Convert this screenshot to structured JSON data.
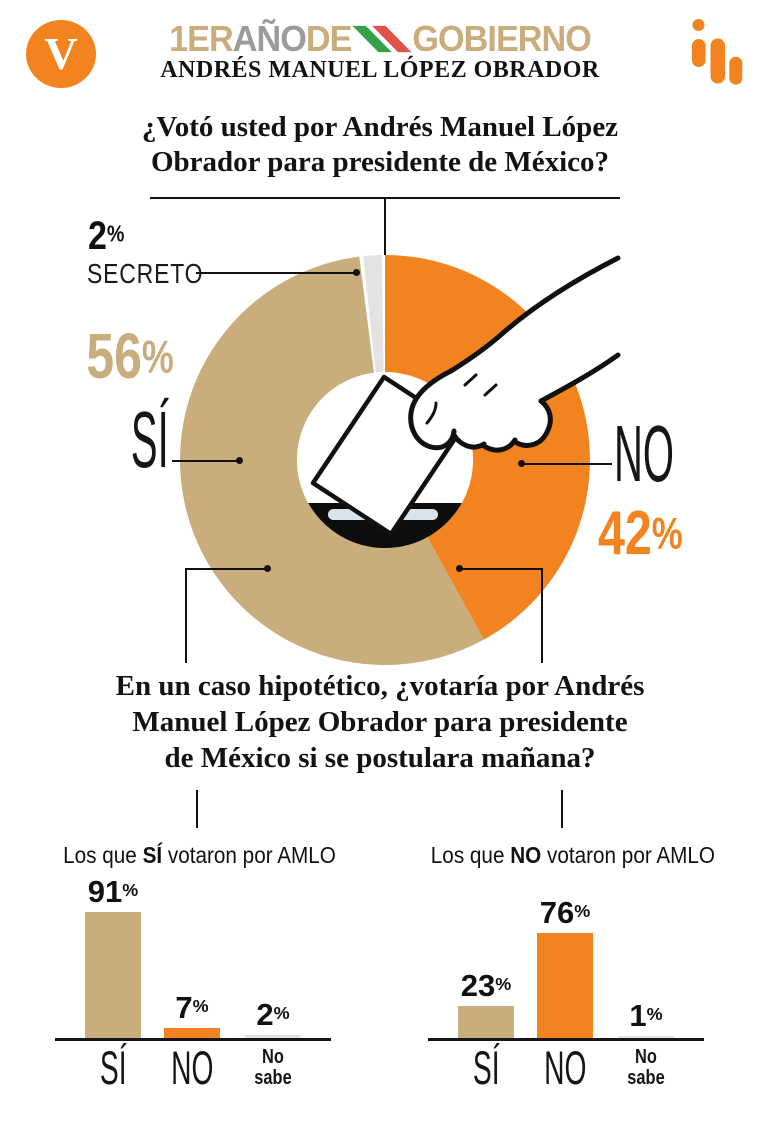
{
  "colors": {
    "tan": "#C9AD7C",
    "orange": "#F3831F",
    "graySeg": "#E4E3E1",
    "titleGray": "#9B9B9B",
    "flagGreen": "#35A047",
    "flagRed": "#E2524A",
    "ink": "#111111",
    "slotBlue": "#D7E3ED"
  },
  "header": {
    "logo_letter": "V",
    "title": {
      "part_1er": "1ER",
      "part_ano": "AÑO",
      "part_de": "DE",
      "part_gobierno": "GOBIERNO"
    },
    "subtitle": "ANDRÉS MANUEL LÓPEZ OBRADOR"
  },
  "pct_sign": "%",
  "question1": {
    "line1": "¿Votó usted por Andrés Manuel López",
    "line2": "Obrador para presidente de México?"
  },
  "question2": {
    "line1": "En un caso hipotético, ¿votaría por Andrés",
    "line2": "Manuel López Obrador para presidente",
    "line3": "de México si se postulara mañana?"
  },
  "chart_data": [
    {
      "type": "pie",
      "subtype": "donut",
      "title": "¿Votó usted por Andrés Manuel López Obrador para presidente de México?",
      "start_angle_deg": 0,
      "direction": "clockwise",
      "segments": [
        {
          "label": "NO",
          "value": 42,
          "color": "#F3831F"
        },
        {
          "label": "SÍ",
          "value": 56,
          "color": "#C9AD7C"
        },
        {
          "label": "SECRETO",
          "value": 2,
          "color": "#E4E3E1"
        }
      ]
    },
    {
      "type": "bar",
      "title_prefix": "Los que ",
      "title_strong": "SÍ",
      "title_suffix": " votaron por AMLO",
      "categories": [
        "SÍ",
        "NO",
        "No sabe"
      ],
      "values": [
        91,
        7,
        2
      ],
      "colors": [
        "#C9AD7C",
        "#F3831F",
        "#E4E3E1"
      ],
      "ylim": [
        0,
        100
      ],
      "legend": "none",
      "grid": false
    },
    {
      "type": "bar",
      "title_prefix": "Los que ",
      "title_strong": "NO",
      "title_suffix": " votaron por AMLO",
      "categories": [
        "SÍ",
        "NO",
        "No sabe"
      ],
      "values": [
        23,
        76,
        1
      ],
      "colors": [
        "#C9AD7C",
        "#F3831F",
        "#E4E3E1"
      ],
      "ylim": [
        0,
        100
      ],
      "legend": "none",
      "grid": false
    }
  ]
}
